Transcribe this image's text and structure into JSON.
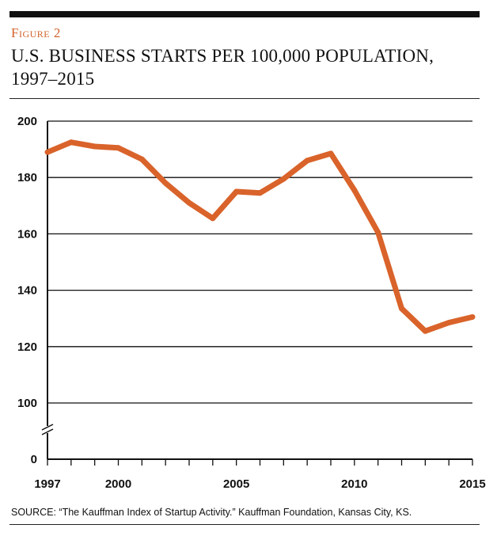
{
  "figure": {
    "label": "Figure 2",
    "title_line1": "U.S. BUSINESS STARTS PER 100,000 POPULATION,",
    "title_line2": "1997–2015",
    "source": "SOURCE: “The Kauffman Index of Startup Activity.” Kauffman Foundation, Kansas City, KS."
  },
  "colors": {
    "line": "#d9632a",
    "accent_text": "#d2622a",
    "grid": "#111111"
  },
  "chart_data": {
    "type": "line",
    "title": "U.S. BUSINESS STARTS PER 100,000 POPULATION, 1997–2015",
    "xlabel": "",
    "ylabel": "",
    "x": [
      1997,
      1998,
      1999,
      2000,
      2001,
      2002,
      2003,
      2004,
      2005,
      2006,
      2007,
      2008,
      2009,
      2010,
      2011,
      2012,
      2013,
      2014,
      2015
    ],
    "series": [
      {
        "name": "",
        "values": [
          189,
          192.5,
          191,
          190.5,
          186.5,
          178,
          171,
          165.5,
          175,
          174.5,
          179.5,
          186,
          188.5,
          175.5,
          160.5,
          133.5,
          125.5,
          128.5,
          130.5
        ]
      }
    ],
    "x_ticks": [
      "1997",
      "2000",
      "2005",
      "2010",
      "2015"
    ],
    "y_ticks": [
      "0",
      "100",
      "120",
      "140",
      "160",
      "180",
      "200"
    ],
    "ylim": [
      100,
      200
    ],
    "y_axis_break": true,
    "grid": true,
    "legend": "none"
  }
}
